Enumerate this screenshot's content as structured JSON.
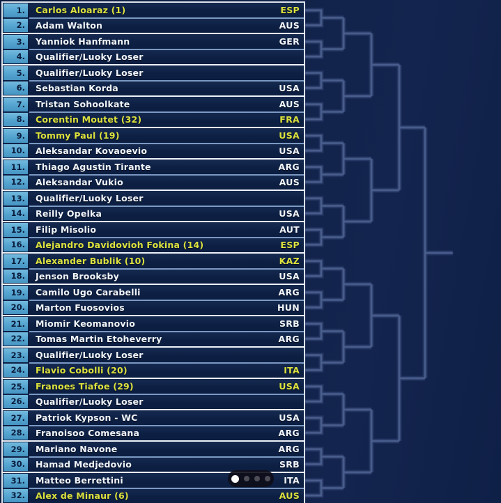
{
  "draw": {
    "players": [
      {
        "position": "1.",
        "name": "Carlos Aloaraz (1)",
        "country": "ESP",
        "seeded": true
      },
      {
        "position": "2.",
        "name": "Adam Walton",
        "country": "AUS",
        "seeded": false
      },
      {
        "position": "3.",
        "name": "Yanniok Hanfmann",
        "country": "GER",
        "seeded": false
      },
      {
        "position": "4.",
        "name": "Qualifier/Luoky Loser",
        "country": "",
        "seeded": false
      },
      {
        "position": "5.",
        "name": "Qualifier/Luoky Loser",
        "country": "",
        "seeded": false
      },
      {
        "position": "6.",
        "name": "Sebastian Korda",
        "country": "USA",
        "seeded": false
      },
      {
        "position": "7.",
        "name": "Tristan Sohoolkate",
        "country": "AUS",
        "seeded": false
      },
      {
        "position": "8.",
        "name": "Corentin Moutet (32)",
        "country": "FRA",
        "seeded": true
      },
      {
        "position": "9.",
        "name": "Tommy Paul (19)",
        "country": "USA",
        "seeded": true
      },
      {
        "position": "10.",
        "name": "Aleksandar Kovaoevio",
        "country": "USA",
        "seeded": false
      },
      {
        "position": "11.",
        "name": "Thiago Agustin Tirante",
        "country": "ARG",
        "seeded": false
      },
      {
        "position": "12.",
        "name": "Aleksandar Vukio",
        "country": "AUS",
        "seeded": false
      },
      {
        "position": "13.",
        "name": "Qualifier/Luoky Loser",
        "country": "",
        "seeded": false
      },
      {
        "position": "14.",
        "name": "Reilly Opelka",
        "country": "USA",
        "seeded": false
      },
      {
        "position": "15.",
        "name": "Filip Misolio",
        "country": "AUT",
        "seeded": false
      },
      {
        "position": "16.",
        "name": "Alejandro Davidovioh Fokina (14)",
        "country": "ESP",
        "seeded": true
      },
      {
        "position": "17.",
        "name": "Alexander Bublik (10)",
        "country": "KAZ",
        "seeded": true
      },
      {
        "position": "18.",
        "name": "Jenson Brooksby",
        "country": "USA",
        "seeded": false
      },
      {
        "position": "19.",
        "name": "Camilo Ugo Carabelli",
        "country": "ARG",
        "seeded": false
      },
      {
        "position": "20.",
        "name": "Marton Fuosovios",
        "country": "HUN",
        "seeded": false
      },
      {
        "position": "21.",
        "name": "Miomir Keomanovio",
        "country": "SRB",
        "seeded": false
      },
      {
        "position": "22.",
        "name": "Tomas Martin Etoheverry",
        "country": "ARG",
        "seeded": false
      },
      {
        "position": "23.",
        "name": "Qualifier/Luoky Loser",
        "country": "",
        "seeded": false
      },
      {
        "position": "24.",
        "name": "Flavio Cobolli (20)",
        "country": "ITA",
        "seeded": true
      },
      {
        "position": "25.",
        "name": "Franoes Tiafoe (29)",
        "country": "USA",
        "seeded": true
      },
      {
        "position": "26.",
        "name": "Qualifier/Luoky Loser",
        "country": "",
        "seeded": false
      },
      {
        "position": "27.",
        "name": "Patriok Kypson - WC",
        "country": "USA",
        "seeded": false
      },
      {
        "position": "28.",
        "name": "Franoisoo Comesana",
        "country": "ARG",
        "seeded": false
      },
      {
        "position": "29.",
        "name": "Mariano Navone",
        "country": "ARG",
        "seeded": false
      },
      {
        "position": "30.",
        "name": "Hamad Medjedovio",
        "country": "SRB",
        "seeded": false
      },
      {
        "position": "31.",
        "name": "Matteo Berrettini",
        "country": "ITA",
        "seeded": false
      },
      {
        "position": "32.",
        "name": "Alex de Minaur (6)",
        "country": "AUS",
        "seeded": true
      }
    ]
  },
  "carousel": {
    "dot_count": 4,
    "active_index": 0
  },
  "colors": {
    "seeded_text": "#dce13e",
    "unseeded_text": "#f1f5fa",
    "number_cell": "#58a8d3",
    "number_text": "#0b1d3d",
    "row_background": "#0d2044",
    "match_border": "#eef3f8",
    "row_separator": "#96b6e2",
    "bracket_line": "#55699a",
    "background": "#112349",
    "active_dot": "#ffffff",
    "inactive_dot": "#4d4d58"
  }
}
